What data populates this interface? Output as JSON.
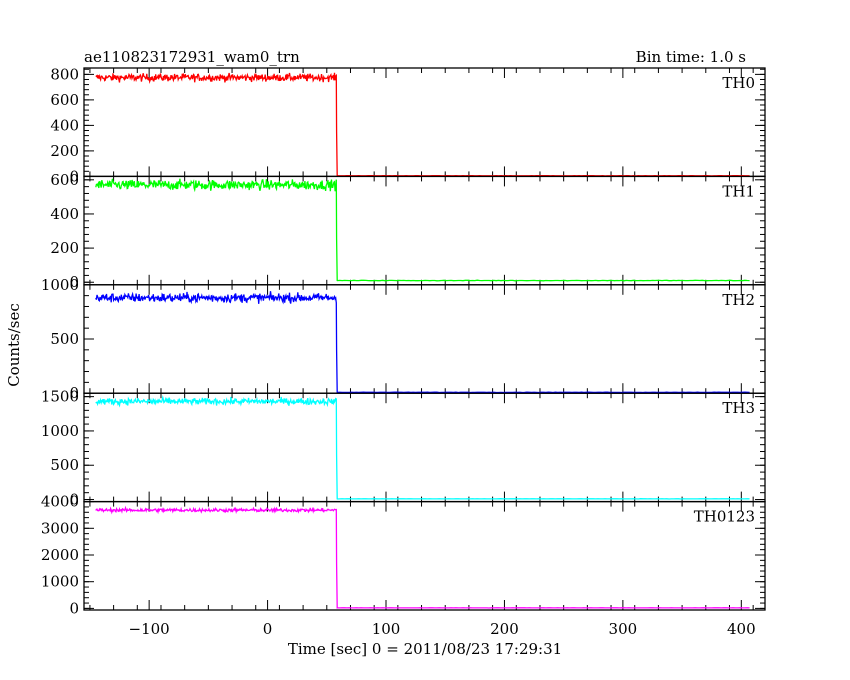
{
  "header": {
    "title": "ae110823172931_wam0_trn",
    "bin_time": "Bin time: 1.0 s"
  },
  "chart_data": {
    "type": "line",
    "title": "ae110823172931_wam0_trn",
    "xlabel": "Time [sec] 0 = 2011/08/23 17:29:31",
    "ylabel": "Counts/sec",
    "xlim": [
      -155,
      420
    ],
    "x_ticks": [
      -100,
      0,
      100,
      200,
      300,
      400
    ],
    "x_tick_labels": [
      "−100",
      "0",
      "100",
      "200",
      "300",
      "400"
    ],
    "drop_time": 58,
    "x_start": -145,
    "x_end": 408,
    "grid": false,
    "legend": "none",
    "panels": [
      {
        "name": "TH0",
        "color": "#ff0000",
        "ylim": [
          0,
          850
        ],
        "ticks": [
          0,
          200,
          400,
          600,
          800
        ],
        "tick_labels": [
          "0",
          "200",
          "400",
          "600",
          "800"
        ],
        "level": 775,
        "noise": 28,
        "after": 5
      },
      {
        "name": "TH1",
        "color": "#00ff00",
        "ylim": [
          -15,
          620
        ],
        "ticks": [
          0,
          200,
          400,
          600
        ],
        "tick_labels": [
          "0",
          "200",
          "400",
          "600"
        ],
        "level": 570,
        "noise": 28,
        "after": 10
      },
      {
        "name": "TH2",
        "color": "#0000ff",
        "ylim": [
          0,
          1000
        ],
        "ticks": [
          0,
          500,
          1000
        ],
        "tick_labels": [
          "0",
          "500",
          "1000"
        ],
        "level": 880,
        "noise": 40,
        "after": 8
      },
      {
        "name": "TH3",
        "color": "#00ffff",
        "ylim": [
          -30,
          1550
        ],
        "ticks": [
          0,
          500,
          1000,
          1500
        ],
        "tick_labels": [
          "0",
          "500",
          "1000",
          "1500"
        ],
        "level": 1430,
        "noise": 45,
        "after": 10
      },
      {
        "name": "TH0123",
        "color": "#ff00ff",
        "ylim": [
          -60,
          4000
        ],
        "ticks": [
          0,
          1000,
          2000,
          3000,
          4000
        ],
        "tick_labels": [
          "0",
          "1000",
          "2000",
          "3000",
          "4000"
        ],
        "level": 3680,
        "noise": 60,
        "after": 20
      }
    ]
  }
}
